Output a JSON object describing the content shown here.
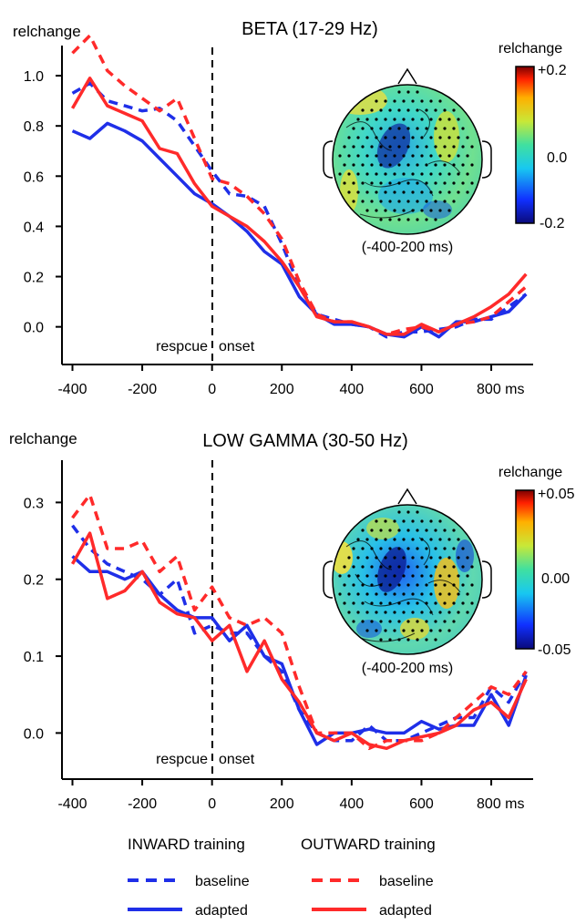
{
  "colors": {
    "inward": "#1f2fe8",
    "outward": "#ff2a2a",
    "axis": "#000000"
  },
  "chart_data": [
    {
      "type": "line",
      "title": "BETA (17-29 Hz)",
      "ylabel": "relchange",
      "x_unit_label": "ms",
      "xlim": [
        -430,
        920
      ],
      "ylim": [
        -0.15,
        1.12
      ],
      "xticks": [
        -400,
        -200,
        0,
        200,
        400,
        600,
        800
      ],
      "xtick_labels": [
        "-400",
        "-200",
        "0",
        "200",
        "400",
        "600",
        "800 ms"
      ],
      "yticks": [
        0.0,
        0.2,
        0.4,
        0.6,
        0.8,
        1.0
      ],
      "ytick_labels": [
        "0.0",
        "0.2",
        "0.4",
        "0.6",
        "0.8",
        "1.0"
      ],
      "annotations": {
        "left": "respcue",
        "right": "onset"
      },
      "topomap": {
        "label": "(-400-200 ms)",
        "colorbar_title": "relchange",
        "colorbar_ticks": [
          "+0.2",
          "0.0",
          "-0.2"
        ]
      },
      "series": [
        {
          "group": "inward",
          "condition": "baseline",
          "dashed": true,
          "x": [
            -400,
            -350,
            -300,
            -250,
            -200,
            -150,
            -100,
            -50,
            0,
            50,
            100,
            150,
            200,
            250,
            300,
            350,
            400,
            450,
            500,
            550,
            600,
            650,
            700,
            750,
            800,
            850,
            900
          ],
          "y": [
            0.93,
            0.97,
            0.9,
            0.88,
            0.86,
            0.87,
            0.82,
            0.72,
            0.62,
            0.53,
            0.52,
            0.48,
            0.33,
            0.16,
            0.05,
            0.03,
            0.01,
            0.0,
            -0.04,
            -0.02,
            -0.02,
            -0.01,
            0.0,
            0.03,
            0.03,
            0.08,
            0.13
          ]
        },
        {
          "group": "inward",
          "condition": "adapted",
          "dashed": false,
          "x": [
            -400,
            -350,
            -300,
            -250,
            -200,
            -150,
            -100,
            -50,
            0,
            50,
            100,
            150,
            200,
            250,
            300,
            350,
            400,
            450,
            500,
            550,
            600,
            650,
            700,
            750,
            800,
            850,
            900
          ],
          "y": [
            0.78,
            0.75,
            0.81,
            0.78,
            0.74,
            0.67,
            0.6,
            0.53,
            0.49,
            0.44,
            0.38,
            0.3,
            0.25,
            0.12,
            0.05,
            0.01,
            0.01,
            0.0,
            -0.03,
            -0.04,
            0.0,
            -0.04,
            0.02,
            0.02,
            0.04,
            0.06,
            0.13
          ]
        },
        {
          "group": "outward",
          "condition": "baseline",
          "dashed": true,
          "x": [
            -400,
            -350,
            -300,
            -250,
            -200,
            -150,
            -100,
            -50,
            0,
            50,
            100,
            150,
            200,
            250,
            300,
            350,
            400,
            450,
            500,
            550,
            600,
            650,
            700,
            750,
            800,
            850,
            900
          ],
          "y": [
            1.09,
            1.16,
            1.02,
            0.96,
            0.91,
            0.86,
            0.91,
            0.75,
            0.59,
            0.57,
            0.52,
            0.45,
            0.35,
            0.18,
            0.05,
            0.02,
            0.02,
            0.0,
            -0.03,
            -0.01,
            0.0,
            -0.02,
            0.01,
            0.02,
            0.04,
            0.1,
            0.16
          ]
        },
        {
          "group": "outward",
          "condition": "adapted",
          "dashed": false,
          "x": [
            -400,
            -350,
            -300,
            -250,
            -200,
            -150,
            -100,
            -50,
            0,
            50,
            100,
            150,
            200,
            250,
            300,
            350,
            400,
            450,
            500,
            550,
            600,
            650,
            700,
            750,
            800,
            850,
            900
          ],
          "y": [
            0.87,
            0.99,
            0.88,
            0.85,
            0.82,
            0.71,
            0.69,
            0.57,
            0.48,
            0.44,
            0.4,
            0.34,
            0.26,
            0.16,
            0.04,
            0.02,
            0.02,
            0.0,
            -0.03,
            -0.03,
            0.01,
            -0.02,
            0.01,
            0.04,
            0.08,
            0.13,
            0.21
          ]
        }
      ]
    },
    {
      "type": "line",
      "title": "LOW GAMMA (30-50 Hz)",
      "ylabel": "relchange",
      "x_unit_label": "ms",
      "xlim": [
        -430,
        920
      ],
      "ylim": [
        -0.06,
        0.355
      ],
      "xticks": [
        -400,
        -200,
        0,
        200,
        400,
        600,
        800
      ],
      "xtick_labels": [
        "-400",
        "-200",
        "0",
        "200",
        "400",
        "600",
        "800 ms"
      ],
      "yticks": [
        0.0,
        0.1,
        0.2,
        0.3
      ],
      "ytick_labels": [
        "0.0",
        "0.1",
        "0.2",
        "0.3"
      ],
      "annotations": {
        "left": "respcue",
        "right": "onset"
      },
      "topomap": {
        "label": "(-400-200 ms)",
        "colorbar_title": "relchange",
        "colorbar_ticks": [
          "+0.05",
          "0.00",
          "-0.05"
        ]
      },
      "series": [
        {
          "group": "inward",
          "condition": "baseline",
          "dashed": true,
          "x": [
            -400,
            -350,
            -300,
            -250,
            -200,
            -150,
            -100,
            -50,
            0,
            50,
            100,
            150,
            200,
            250,
            300,
            350,
            400,
            450,
            500,
            550,
            600,
            650,
            700,
            750,
            800,
            850,
            900
          ],
          "y": [
            0.27,
            0.24,
            0.22,
            0.21,
            0.2,
            0.18,
            0.2,
            0.13,
            0.14,
            0.13,
            0.13,
            0.1,
            0.08,
            0.03,
            0.0,
            -0.01,
            -0.01,
            0.01,
            -0.01,
            -0.01,
            0.0,
            0.01,
            0.02,
            0.02,
            0.06,
            0.04,
            0.08
          ]
        },
        {
          "group": "inward",
          "condition": "adapted",
          "dashed": false,
          "x": [
            -400,
            -350,
            -300,
            -250,
            -200,
            -150,
            -100,
            -50,
            0,
            50,
            100,
            150,
            200,
            250,
            300,
            350,
            400,
            450,
            500,
            550,
            600,
            650,
            700,
            750,
            800,
            850,
            900
          ],
          "y": [
            0.23,
            0.21,
            0.21,
            0.2,
            0.21,
            0.18,
            0.16,
            0.15,
            0.15,
            0.12,
            0.14,
            0.1,
            0.09,
            0.03,
            -0.015,
            0.0,
            0.0,
            0.005,
            0.0,
            0.0,
            0.015,
            0.005,
            0.01,
            0.01,
            0.05,
            0.01,
            0.075
          ]
        },
        {
          "group": "outward",
          "condition": "baseline",
          "dashed": true,
          "x": [
            -400,
            -350,
            -300,
            -250,
            -200,
            -150,
            -100,
            -50,
            0,
            50,
            100,
            150,
            200,
            250,
            300,
            350,
            400,
            450,
            500,
            550,
            600,
            650,
            700,
            750,
            800,
            850,
            900
          ],
          "y": [
            0.28,
            0.31,
            0.24,
            0.24,
            0.25,
            0.21,
            0.23,
            0.16,
            0.19,
            0.15,
            0.14,
            0.15,
            0.13,
            0.06,
            0.0,
            0.0,
            0.0,
            -0.02,
            -0.01,
            -0.01,
            -0.01,
            0.0,
            0.02,
            0.04,
            0.06,
            0.05,
            0.08
          ]
        },
        {
          "group": "outward",
          "condition": "adapted",
          "dashed": false,
          "x": [
            -400,
            -350,
            -300,
            -250,
            -200,
            -150,
            -100,
            -50,
            0,
            50,
            100,
            150,
            200,
            250,
            300,
            350,
            400,
            450,
            500,
            550,
            600,
            650,
            700,
            750,
            800,
            850,
            900
          ],
          "y": [
            0.22,
            0.26,
            0.175,
            0.185,
            0.21,
            0.17,
            0.155,
            0.15,
            0.12,
            0.14,
            0.08,
            0.12,
            0.07,
            0.04,
            0.0,
            -0.01,
            0.0,
            -0.015,
            -0.02,
            -0.01,
            -0.005,
            0.0,
            0.01,
            0.03,
            0.04,
            0.02,
            0.07
          ]
        }
      ]
    }
  ],
  "legend": {
    "inward_title": "INWARD training",
    "outward_title": "OUTWARD training",
    "baseline_label": "baseline",
    "adapted_label": "adapted"
  }
}
